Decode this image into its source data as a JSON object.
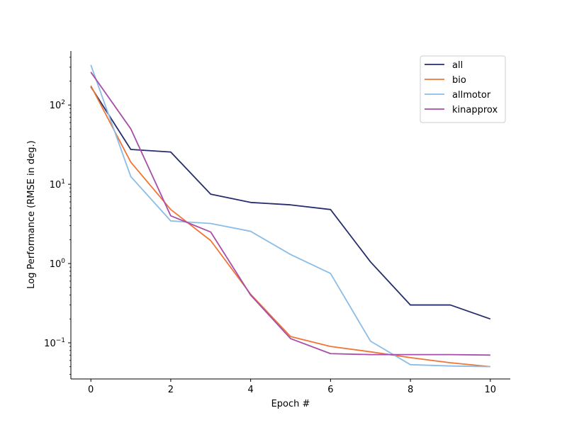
{
  "chart_data": {
    "type": "line",
    "title": "",
    "xlabel": "Epoch #",
    "ylabel": "Log Performance (RMSE in deg.)",
    "yscale": "log",
    "xlim": [
      -0.5,
      10.5
    ],
    "ylim": [
      0.035,
      480
    ],
    "xticks": [
      0,
      2,
      4,
      6,
      8,
      10
    ],
    "xtick_labels": [
      "0",
      "2",
      "4",
      "6",
      "8",
      "10"
    ],
    "yticks_major": [
      0.1,
      1,
      10,
      100
    ],
    "ytick_labels": [
      {
        "base": "10",
        "exp": "−1"
      },
      {
        "base": "10",
        "exp": "0"
      },
      {
        "base": "10",
        "exp": "1"
      },
      {
        "base": "10",
        "exp": "2"
      }
    ],
    "grid": false,
    "legend_position": "top-right",
    "x": [
      0,
      1,
      2,
      3,
      4,
      5,
      6,
      7,
      8,
      9,
      10
    ],
    "series": [
      {
        "name": "all",
        "color": "#262d6e",
        "values": [
          170,
          27.5,
          25.5,
          7.5,
          5.9,
          5.5,
          4.8,
          1.05,
          0.3,
          0.3,
          0.2
        ]
      },
      {
        "name": "bio",
        "color": "#f07536",
        "values": [
          175,
          19,
          4.8,
          1.95,
          0.41,
          0.12,
          0.09,
          0.077,
          0.065,
          0.056,
          0.05
        ]
      },
      {
        "name": "allmotor",
        "color": "#8bbde6",
        "values": [
          320,
          12.5,
          3.45,
          3.2,
          2.55,
          1.3,
          0.75,
          0.105,
          0.053,
          0.051,
          0.05
        ]
      },
      {
        "name": "kinapprox",
        "color": "#a64ea8",
        "values": [
          260,
          50,
          4.0,
          2.5,
          0.4,
          0.113,
          0.073,
          0.071,
          0.071,
          0.071,
          0.07
        ]
      }
    ]
  }
}
